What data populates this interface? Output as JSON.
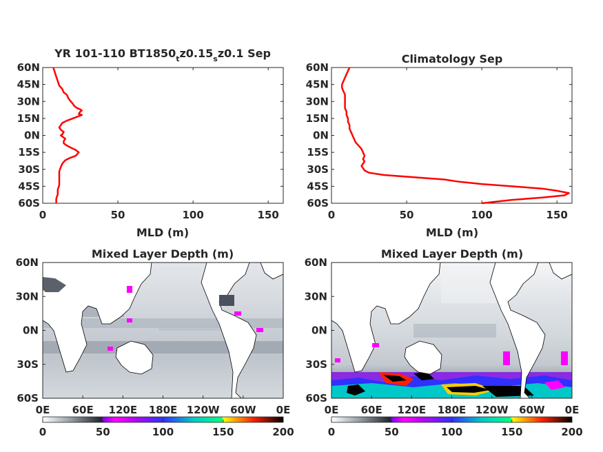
{
  "charts": [
    {
      "type": "line",
      "title": "YR 101-110 BT1850",
      "title_sub1": "t",
      "title_mid": "z0.15",
      "title_sub2": "s",
      "title_end": "z0.1 Sep",
      "xlabel": "MLD (m)",
      "xlim": [
        0,
        160
      ],
      "ylim": [
        -60,
        60
      ],
      "xticks": [
        "0",
        "50",
        "100",
        "150"
      ],
      "xtick_values": [
        0,
        50,
        100,
        150
      ],
      "yticks": [
        "60N",
        "45N",
        "30N",
        "15N",
        "0N",
        "15S",
        "30S",
        "45S",
        "60S"
      ],
      "ytick_values": [
        60,
        45,
        30,
        15,
        0,
        -15,
        -30,
        -45,
        -60
      ],
      "line_color": "#ff0000",
      "series": [
        {
          "points": [
            [
              7,
              60
            ],
            [
              8,
              56
            ],
            [
              9,
              52
            ],
            [
              10,
              48
            ],
            [
              11,
              44
            ],
            [
              13,
              41
            ],
            [
              14,
              38
            ],
            [
              16,
              36
            ],
            [
              17,
              33
            ],
            [
              18,
              31
            ],
            [
              20,
              28
            ],
            [
              21,
              26
            ],
            [
              23,
              24
            ],
            [
              25,
              23
            ],
            [
              26,
              22
            ],
            [
              25,
              21
            ],
            [
              24,
              19
            ],
            [
              26,
              18
            ],
            [
              24,
              17
            ],
            [
              20,
              15
            ],
            [
              16,
              13
            ],
            [
              13,
              11
            ],
            [
              12,
              9
            ],
            [
              11,
              7
            ],
            [
              12,
              5
            ],
            [
              14,
              3
            ],
            [
              13,
              1
            ],
            [
              12,
              0
            ],
            [
              13,
              -1
            ],
            [
              15,
              -3
            ],
            [
              14,
              -5
            ],
            [
              14,
              -7
            ],
            [
              16,
              -9
            ],
            [
              19,
              -11
            ],
            [
              22,
              -13
            ],
            [
              24,
              -15
            ],
            [
              22,
              -18
            ],
            [
              18,
              -20
            ],
            [
              15,
              -22
            ],
            [
              13,
              -25
            ],
            [
              12,
              -28
            ],
            [
              11,
              -32
            ],
            [
              11,
              -36
            ],
            [
              11,
              -40
            ],
            [
              11,
              -44
            ],
            [
              10,
              -48
            ],
            [
              10,
              -52
            ],
            [
              9,
              -56
            ],
            [
              9,
              -60
            ]
          ]
        }
      ]
    },
    {
      "type": "line",
      "title": "Climatology Sep",
      "xlabel": "MLD (m)",
      "xlim": [
        0,
        160
      ],
      "ylim": [
        -60,
        60
      ],
      "xticks": [
        "0",
        "50",
        "100",
        "150"
      ],
      "xtick_values": [
        0,
        50,
        100,
        150
      ],
      "yticks": [
        "60N",
        "45N",
        "30N",
        "15N",
        "0N",
        "15S",
        "30S",
        "45S",
        "60S"
      ],
      "ytick_values": [
        60,
        45,
        30,
        15,
        0,
        -15,
        -30,
        -45,
        -60
      ],
      "line_color": "#ff0000",
      "series": [
        {
          "points": [
            [
              12,
              60
            ],
            [
              11,
              57
            ],
            [
              10,
              54
            ],
            [
              9,
              51
            ],
            [
              8,
              48
            ],
            [
              7,
              45
            ],
            [
              7,
              42
            ],
            [
              8,
              39
            ],
            [
              9,
              36
            ],
            [
              9,
              33
            ],
            [
              9,
              30
            ],
            [
              9,
              27
            ],
            [
              9,
              24
            ],
            [
              10,
              21
            ],
            [
              10,
              18
            ],
            [
              11,
              15
            ],
            [
              11,
              12
            ],
            [
              12,
              9
            ],
            [
              12,
              6
            ],
            [
              13,
              3
            ],
            [
              14,
              0
            ],
            [
              15,
              -3
            ],
            [
              16,
              -6
            ],
            [
              18,
              -9
            ],
            [
              20,
              -12
            ],
            [
              21,
              -15
            ],
            [
              22,
              -18
            ],
            [
              21,
              -21
            ],
            [
              22,
              -23
            ],
            [
              21,
              -25
            ],
            [
              20,
              -27
            ],
            [
              21,
              -29
            ],
            [
              22,
              -31
            ],
            [
              25,
              -33
            ],
            [
              35,
              -35
            ],
            [
              55,
              -37
            ],
            [
              75,
              -39
            ],
            [
              85,
              -41
            ],
            [
              100,
              -43
            ],
            [
              120,
              -45
            ],
            [
              140,
              -47
            ],
            [
              150,
              -49
            ],
            [
              158,
              -51
            ],
            [
              155,
              -53
            ],
            [
              140,
              -55
            ],
            [
              120,
              -57
            ],
            [
              100,
              -60
            ]
          ]
        }
      ]
    },
    {
      "type": "heatmap",
      "title": "Mixed Layer Depth (m)",
      "xticks": [
        "0E",
        "60E",
        "120E",
        "180E",
        "120W",
        "60W",
        "0E"
      ],
      "yticks": [
        "60N",
        "30N",
        "0N",
        "30S",
        "60S"
      ],
      "ytick_values": [
        60,
        30,
        0,
        -30,
        -60
      ],
      "ylim": [
        -60,
        60
      ],
      "colorbar_ticks": [
        "0",
        "50",
        "100",
        "150",
        "200"
      ],
      "colorbar_values": [
        0,
        50,
        100,
        150,
        200
      ],
      "colorbar_colors": [
        "#ffffff",
        "#909aa4",
        "#20252d",
        "#ff00ff",
        "#3030ff",
        "#00c8c8",
        "#ffff00",
        "#ff2000",
        "#000000"
      ]
    },
    {
      "type": "heatmap",
      "title": "Mixed Layer Depth (m)",
      "xticks": [
        "0E",
        "60E",
        "120E",
        "180E",
        "120W",
        "60W",
        "0E"
      ],
      "yticks": [
        "60N",
        "30N",
        "0N",
        "30S",
        "60S"
      ],
      "ytick_values": [
        60,
        30,
        0,
        -30,
        -60
      ],
      "ylim": [
        -60,
        60
      ],
      "colorbar_ticks": [
        "0",
        "50",
        "100",
        "150",
        "200"
      ],
      "colorbar_values": [
        0,
        50,
        100,
        150,
        200
      ],
      "colorbar_colors": [
        "#ffffff",
        "#909aa4",
        "#20252d",
        "#ff00ff",
        "#3030ff",
        "#00c8c8",
        "#ffff00",
        "#ff2000",
        "#000000"
      ]
    }
  ]
}
